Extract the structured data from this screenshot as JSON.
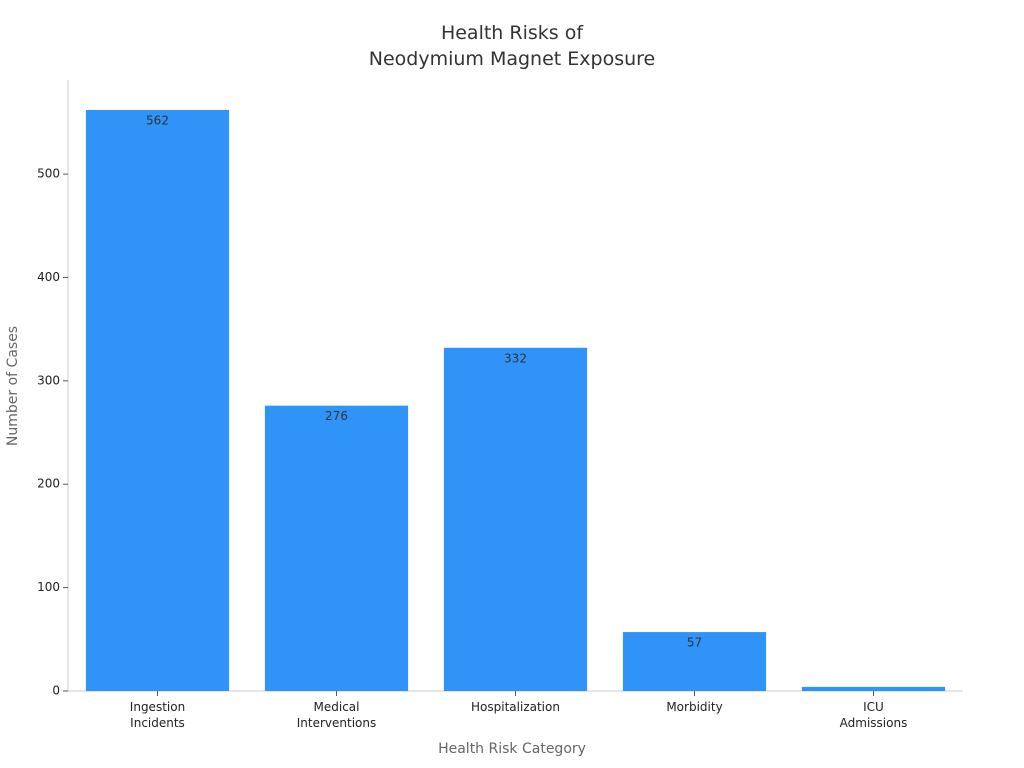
{
  "chart_data": {
    "type": "bar",
    "title": "Health Risks of\nNeodymium Magnet Exposure",
    "x_label": "Health Risk Category",
    "y_label": "Number of Cases",
    "categories": [
      "Ingestion\nIncidents",
      "Medical\nInterventions",
      "Hospitalization",
      "Morbidity",
      "ICU\nAdmissions"
    ],
    "values": [
      562,
      276,
      332,
      57,
      4
    ],
    "value_labels": [
      "562",
      "276",
      "332",
      "57",
      null
    ],
    "color": "#3093f8",
    "ylim": [
      0,
      591
    ],
    "yticks": [
      0,
      100,
      200,
      300,
      400,
      500
    ],
    "grid": false
  }
}
